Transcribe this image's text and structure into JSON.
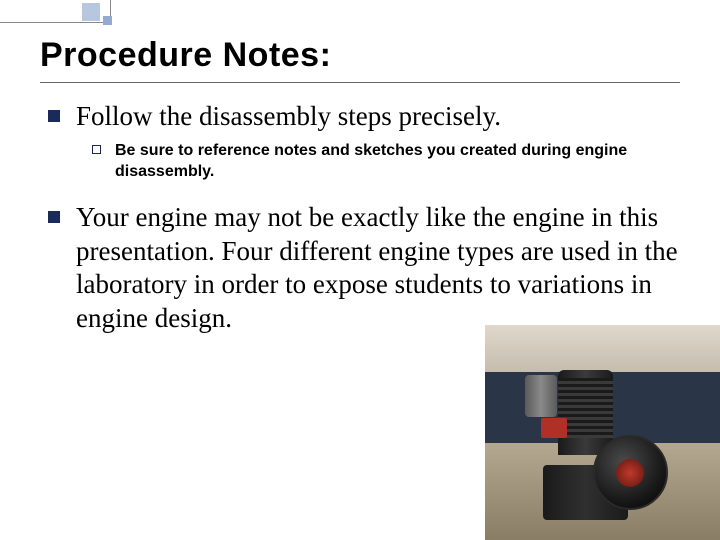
{
  "title": "Procedure Notes:",
  "bullets": [
    {
      "text": "Follow the disassembly steps precisely.",
      "sub": "Be sure to reference notes and sketches you created during engine disassembly."
    },
    {
      "text": "Your engine may not be exactly like the engine in this presentation.  Four different engine types are used in the laboratory in order to expose students to variations in engine design."
    }
  ],
  "style": {
    "title_fontsize": 34,
    "title_color": "#000000",
    "bullet_fontsize": 27,
    "bullet_color": "#000000",
    "bullet_square_color": "#1a2a5a",
    "sub_fontsize": 16,
    "sub_color": "#000000",
    "background_color": "#ffffff",
    "underline_color": "#666666",
    "corner_square_big_color": "#b7c7e0",
    "corner_square_small_color": "#94aad0"
  }
}
